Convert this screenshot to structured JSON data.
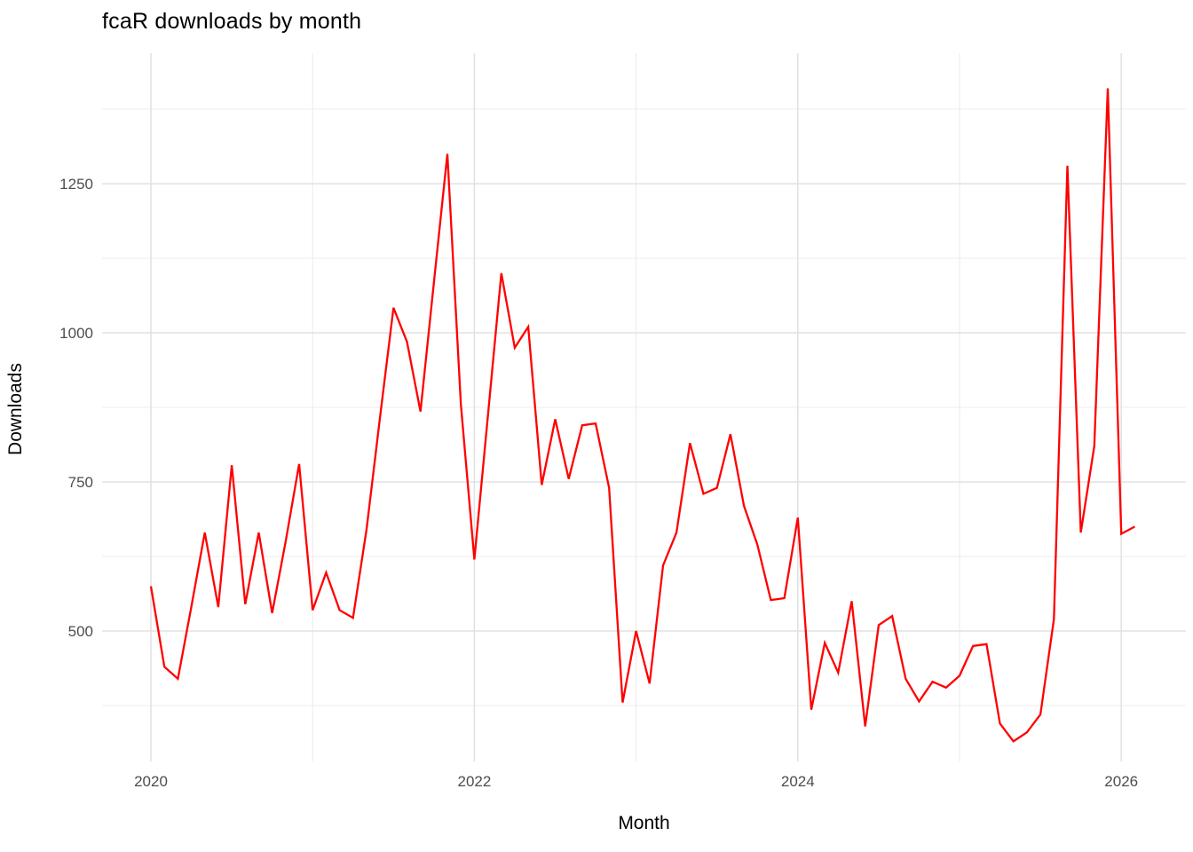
{
  "page": {
    "background": "#FFFFFF"
  },
  "chart_data": {
    "type": "line",
    "title": "fcaR downloads by month",
    "xlabel": "Month",
    "ylabel": "Downloads",
    "series_name": "fcaR monthly downloads",
    "line_color": "#FF0000",
    "grid_major_color": "#E2E2E2",
    "grid_minor_color": "#ECECEC",
    "tick_label_color": "#4D4D4D",
    "legend": "none",
    "grid": true,
    "months": [
      "2020-01",
      "2020-02",
      "2020-03",
      "2020-04",
      "2020-05",
      "2020-06",
      "2020-07",
      "2020-08",
      "2020-09",
      "2020-10",
      "2020-11",
      "2020-12",
      "2021-01",
      "2021-02",
      "2021-03",
      "2021-04",
      "2021-05",
      "2021-06",
      "2021-07",
      "2021-08",
      "2021-09",
      "2021-10",
      "2021-11",
      "2021-12",
      "2022-01",
      "2022-02",
      "2022-03",
      "2022-04",
      "2022-05",
      "2022-06",
      "2022-07",
      "2022-08",
      "2022-09",
      "2022-10",
      "2022-11",
      "2022-12",
      "2023-01",
      "2023-02",
      "2023-03",
      "2023-04",
      "2023-05",
      "2023-06",
      "2023-07",
      "2023-08",
      "2023-09",
      "2023-10",
      "2023-11",
      "2023-12",
      "2024-01",
      "2024-02",
      "2024-03",
      "2024-04",
      "2024-05",
      "2024-06",
      "2024-07",
      "2024-08",
      "2024-09",
      "2024-10",
      "2024-11",
      "2024-12",
      "2025-01",
      "2025-02",
      "2025-03",
      "2025-04",
      "2025-05",
      "2025-06",
      "2025-07",
      "2025-08",
      "2025-09",
      "2025-10",
      "2025-11",
      "2025-12",
      "2026-01",
      "2026-02"
    ],
    "values": [
      575,
      440,
      420,
      540,
      665,
      540,
      778,
      545,
      665,
      530,
      650,
      780,
      535,
      598,
      535,
      522,
      670,
      858,
      1042,
      985,
      868,
      1084,
      1300,
      880,
      620,
      860,
      1100,
      975,
      1010,
      745,
      855,
      755,
      845,
      848,
      740,
      380,
      500,
      412,
      610,
      665,
      815,
      730,
      740,
      830,
      710,
      645,
      552,
      555,
      690,
      368,
      480,
      430,
      550,
      340,
      510,
      525,
      420,
      382,
      415,
      405,
      425,
      475,
      478,
      345,
      315,
      330,
      360,
      520,
      1280,
      665,
      810,
      1410,
      663,
      675
    ],
    "x_tick_labels": [
      "2020",
      "2022",
      "2024",
      "2026"
    ],
    "x_tick_years": [
      2020,
      2022,
      2024,
      2026
    ],
    "x_minor_years": [
      2021,
      2023,
      2025
    ],
    "y_tick_labels": [
      "500",
      "750",
      "1000",
      "1250"
    ],
    "y_ticks": [
      500,
      750,
      1000,
      1250
    ],
    "y_minor_ticks": [
      375,
      625,
      875,
      1125,
      1375
    ],
    "ylim": [
      280,
      1470
    ]
  }
}
